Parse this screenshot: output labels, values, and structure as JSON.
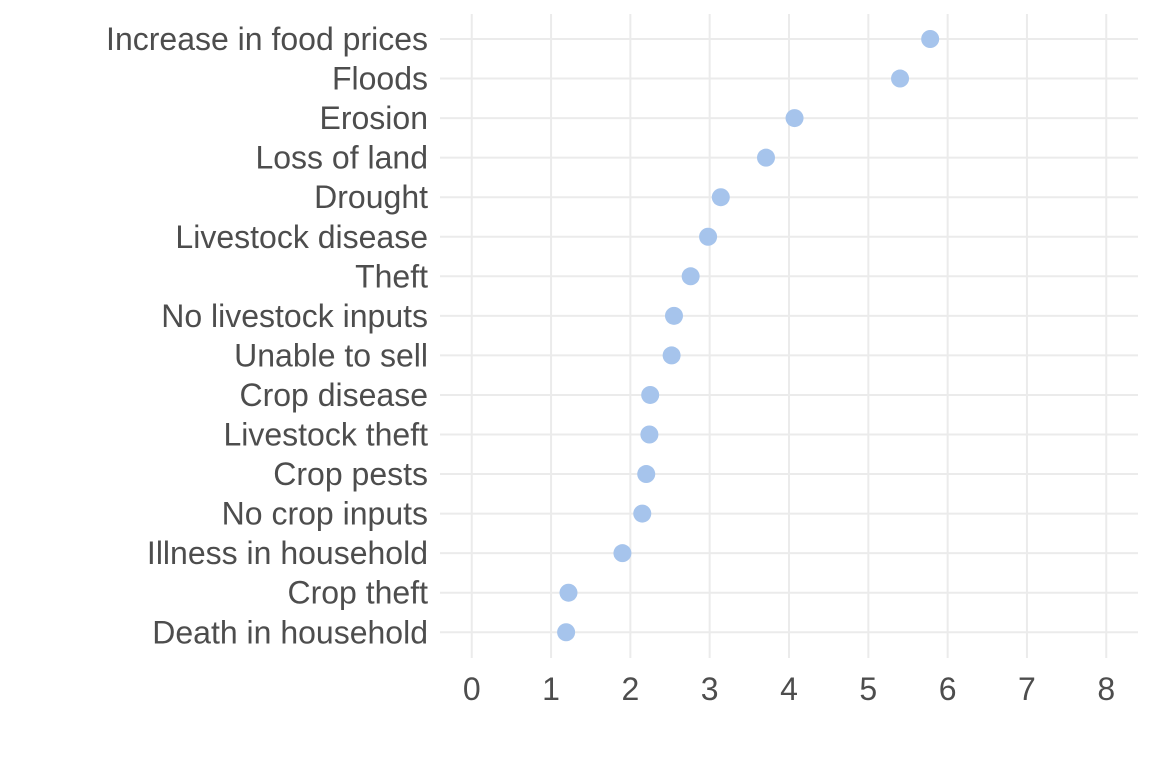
{
  "chart_data": {
    "type": "scatter",
    "title": "",
    "xlabel": "",
    "ylabel": "",
    "categories": [
      "Increase in food prices",
      "Floods",
      "Erosion",
      "Loss of land",
      "Drought",
      "Livestock disease",
      "Theft",
      "No livestock inputs",
      "Unable to sell",
      "Crop disease",
      "Livestock theft",
      "Crop pests",
      "No crop inputs",
      "Illness in household",
      "Crop theft",
      "Death in household"
    ],
    "values": [
      5.78,
      5.4,
      4.07,
      3.71,
      3.14,
      2.98,
      2.76,
      2.55,
      2.52,
      2.25,
      2.24,
      2.2,
      2.15,
      1.9,
      1.22,
      1.19
    ],
    "xlim": [
      -0.4,
      8.4
    ],
    "x_ticks": [
      "0",
      "1",
      "2",
      "3",
      "4",
      "5",
      "6",
      "7",
      "8"
    ],
    "grid": true,
    "legend": "none",
    "point_color": "#a6c4ec"
  }
}
